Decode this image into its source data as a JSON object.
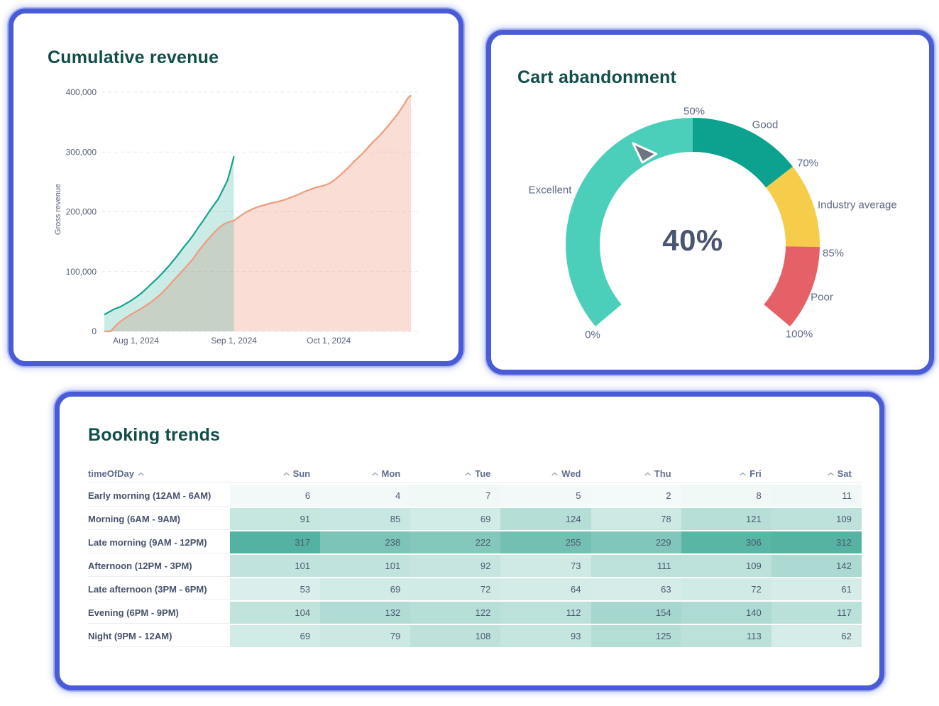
{
  "page": {
    "background": "#FFFFFF",
    "card_border_color": "#4A5BD8",
    "title_color": "#114E4A"
  },
  "chart_data": [
    {
      "type": "area",
      "title": "Cumulative revenue",
      "xlabel": "",
      "ylabel": "Gross revenue",
      "ylim": [
        0,
        400000
      ],
      "xlim": [
        0,
        97
      ],
      "grid": "horizontal-dashed",
      "legend_position": "none",
      "y_ticks": [
        {
          "label": "0",
          "value": 0
        },
        {
          "label": "100,000",
          "value": 100000
        },
        {
          "label": "200,000",
          "value": 200000
        },
        {
          "label": "300,000",
          "value": 300000
        },
        {
          "label": "400,000",
          "value": 400000
        }
      ],
      "x_ticks": [
        {
          "label": "Aug 1, 2024",
          "day": 10
        },
        {
          "label": "Sep 1, 2024",
          "day": 41
        },
        {
          "label": "Oct 1, 2024",
          "day": 71
        }
      ],
      "series": [
        {
          "name": "teal-series",
          "color": "#14A38C",
          "fill": "rgba(20,163,140,0.22)",
          "points": [
            [
              0,
              28000
            ],
            [
              2,
              34000
            ],
            [
              3,
              37000
            ],
            [
              5,
              41000
            ],
            [
              6,
              44000
            ],
            [
              8,
              50000
            ],
            [
              10,
              57000
            ],
            [
              12,
              65000
            ],
            [
              13,
              70000
            ],
            [
              15,
              80000
            ],
            [
              17,
              90000
            ],
            [
              19,
              101000
            ],
            [
              21,
              113000
            ],
            [
              23,
              126000
            ],
            [
              25,
              140000
            ],
            [
              27,
              153000
            ],
            [
              28,
              160000
            ],
            [
              30,
              176000
            ],
            [
              31,
              183000
            ],
            [
              33,
              199000
            ],
            [
              35,
              214000
            ],
            [
              36,
              221000
            ],
            [
              38,
              242000
            ],
            [
              39,
              253000
            ],
            [
              40,
              272000
            ],
            [
              41,
              293000
            ]
          ]
        },
        {
          "name": "salmon-series",
          "color": "#F09B7E",
          "fill": "rgba(240,151,124,0.32)",
          "points": [
            [
              0,
              0
            ],
            [
              2,
              0
            ],
            [
              3,
              6000
            ],
            [
              4,
              12000
            ],
            [
              6,
              20000
            ],
            [
              8,
              27000
            ],
            [
              10,
              33000
            ],
            [
              12,
              39000
            ],
            [
              14,
              46000
            ],
            [
              16,
              54000
            ],
            [
              18,
              63000
            ],
            [
              20,
              74000
            ],
            [
              22,
              86000
            ],
            [
              24,
              97000
            ],
            [
              26,
              109000
            ],
            [
              28,
              121000
            ],
            [
              30,
              136000
            ],
            [
              32,
              149000
            ],
            [
              34,
              161000
            ],
            [
              36,
              172000
            ],
            [
              38,
              180000
            ],
            [
              40,
              184000
            ],
            [
              41,
              185000
            ],
            [
              43,
              193000
            ],
            [
              45,
              200000
            ],
            [
              47,
              205000
            ],
            [
              49,
              209000
            ],
            [
              51,
              212000
            ],
            [
              53,
              215000
            ],
            [
              55,
              217000
            ],
            [
              57,
              220000
            ],
            [
              59,
              224000
            ],
            [
              61,
              228000
            ],
            [
              63,
              233000
            ],
            [
              65,
              237000
            ],
            [
              67,
              241000
            ],
            [
              69,
              243000
            ],
            [
              71,
              247000
            ],
            [
              73,
              254000
            ],
            [
              75,
              263000
            ],
            [
              77,
              273000
            ],
            [
              79,
              284000
            ],
            [
              81,
              294000
            ],
            [
              83,
              305000
            ],
            [
              85,
              317000
            ],
            [
              87,
              327000
            ],
            [
              89,
              339000
            ],
            [
              91,
              352000
            ],
            [
              93,
              365000
            ],
            [
              95,
              381000
            ],
            [
              96,
              390000
            ],
            [
              97,
              395000
            ]
          ]
        }
      ]
    },
    {
      "type": "gauge",
      "title": "Cart abandonment",
      "value": 40,
      "value_label": "40%",
      "min": 0,
      "max": 100,
      "start_angle": -130,
      "end_angle": 130,
      "needle_color": "#6E7480",
      "segments": [
        {
          "label": "Excellent",
          "from": 0,
          "to": 50,
          "color": "#4BCFBA"
        },
        {
          "label": "Good",
          "from": 50,
          "to": 70,
          "color": "#0DA290"
        },
        {
          "label": "Industry average",
          "from": 70,
          "to": 85,
          "color": "#F6CD4B"
        },
        {
          "label": "Poor",
          "from": 85,
          "to": 100,
          "color": "#E56067"
        }
      ],
      "tick_labels": [
        "0%",
        "50%",
        "70%",
        "85%",
        "100%"
      ]
    },
    {
      "type": "heatmap",
      "title": "Booking trends",
      "row_header": "timeOfDay",
      "columns": [
        "Sun",
        "Mon",
        "Tue",
        "Wed",
        "Thu",
        "Fri",
        "Sat"
      ],
      "rows": [
        {
          "label": "Early morning (12AM - 6AM)",
          "values": [
            6,
            4,
            7,
            5,
            2,
            8,
            11
          ]
        },
        {
          "label": "Morning (6AM - 9AM)",
          "values": [
            91,
            85,
            69,
            124,
            78,
            121,
            109
          ]
        },
        {
          "label": "Late morning (9AM - 12PM)",
          "values": [
            317,
            238,
            222,
            255,
            229,
            306,
            312
          ]
        },
        {
          "label": "Afternoon (12PM - 3PM)",
          "values": [
            101,
            101,
            92,
            73,
            111,
            109,
            142
          ]
        },
        {
          "label": "Late afternoon (3PM - 6PM)",
          "values": [
            53,
            69,
            72,
            64,
            63,
            72,
            61
          ]
        },
        {
          "label": "Evening (6PM - 9PM)",
          "values": [
            104,
            132,
            122,
            112,
            154,
            140,
            117
          ]
        },
        {
          "label": "Night (9PM - 12AM)",
          "values": [
            69,
            79,
            108,
            93,
            125,
            113,
            62
          ]
        }
      ],
      "color_scale": {
        "min_color": "#FFFFFF",
        "max_color": "#53B2A1",
        "max_value": 317
      }
    }
  ]
}
